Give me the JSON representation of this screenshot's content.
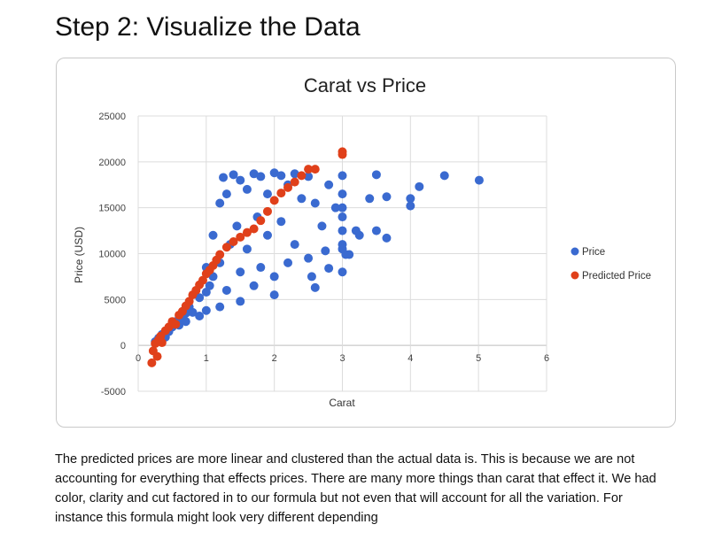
{
  "page": {
    "heading": "Step 2: Visualize the Data",
    "paragraph": "The predicted prices are more linear and clustered than the actual data is. This is because we are not accounting for everything that effects prices. There are many more things than carat that effect it. We had color, clarity and cut factored in to our formula but not even that will account for all the variation. For instance this formula might look very different depending"
  },
  "chart_data": {
    "type": "scatter",
    "title": "Carat vs Price",
    "xlabel": "Carat",
    "ylabel": "Price (USD)",
    "xlim": [
      0,
      6
    ],
    "ylim": [
      -5000,
      25000
    ],
    "x_ticks": [
      "0",
      "1",
      "2",
      "3",
      "4",
      "5",
      "6"
    ],
    "y_ticks": [
      "-5000",
      "0",
      "5000",
      "10000",
      "15000",
      "20000",
      "25000"
    ],
    "grid": true,
    "legend_position": "right",
    "colors": {
      "Price": "#3a6ad0",
      "Predicted Price": "#e0401a"
    },
    "series": [
      {
        "name": "Price",
        "points": [
          [
            0.25,
            400
          ],
          [
            0.3,
            800
          ],
          [
            0.35,
            1200
          ],
          [
            0.4,
            900
          ],
          [
            0.45,
            1500
          ],
          [
            0.5,
            2000
          ],
          [
            0.55,
            2600
          ],
          [
            0.6,
            2200
          ],
          [
            0.65,
            3000
          ],
          [
            0.7,
            3500
          ],
          [
            0.7,
            2600
          ],
          [
            0.75,
            4200
          ],
          [
            0.8,
            3600
          ],
          [
            0.9,
            5200
          ],
          [
            0.9,
            3200
          ],
          [
            1.0,
            5800
          ],
          [
            1.0,
            3800
          ],
          [
            1.0,
            8500
          ],
          [
            1.05,
            6500
          ],
          [
            1.1,
            12000
          ],
          [
            1.1,
            7500
          ],
          [
            1.2,
            15500
          ],
          [
            1.2,
            9000
          ],
          [
            1.2,
            4200
          ],
          [
            1.25,
            18300
          ],
          [
            1.3,
            16500
          ],
          [
            1.3,
            6000
          ],
          [
            1.35,
            11000
          ],
          [
            1.4,
            18600
          ],
          [
            1.45,
            13000
          ],
          [
            1.5,
            18000
          ],
          [
            1.5,
            8000
          ],
          [
            1.5,
            4800
          ],
          [
            1.6,
            17000
          ],
          [
            1.6,
            10500
          ],
          [
            1.7,
            18700
          ],
          [
            1.7,
            6500
          ],
          [
            1.75,
            14000
          ],
          [
            1.8,
            18400
          ],
          [
            1.8,
            8500
          ],
          [
            1.9,
            16500
          ],
          [
            1.9,
            12000
          ],
          [
            2.0,
            18800
          ],
          [
            2.0,
            7500
          ],
          [
            2.0,
            5500
          ],
          [
            2.1,
            18500
          ],
          [
            2.1,
            13500
          ],
          [
            2.2,
            17500
          ],
          [
            2.2,
            9000
          ],
          [
            2.3,
            18700
          ],
          [
            2.3,
            11000
          ],
          [
            2.4,
            16000
          ],
          [
            2.5,
            18400
          ],
          [
            2.5,
            9500
          ],
          [
            2.55,
            7500
          ],
          [
            2.6,
            15500
          ],
          [
            2.6,
            6300
          ],
          [
            2.7,
            13000
          ],
          [
            2.75,
            10300
          ],
          [
            2.8,
            17500
          ],
          [
            2.8,
            8400
          ],
          [
            2.9,
            15000
          ],
          [
            3.0,
            18500
          ],
          [
            3.0,
            16500
          ],
          [
            3.0,
            15000
          ],
          [
            3.0,
            14000
          ],
          [
            3.0,
            12500
          ],
          [
            3.0,
            11000
          ],
          [
            3.0,
            10500
          ],
          [
            3.0,
            8000
          ],
          [
            3.05,
            9900
          ],
          [
            3.1,
            9900
          ],
          [
            3.2,
            12500
          ],
          [
            3.25,
            12000
          ],
          [
            3.4,
            16000
          ],
          [
            3.5,
            18600
          ],
          [
            3.5,
            12500
          ],
          [
            3.65,
            16200
          ],
          [
            3.65,
            11700
          ],
          [
            4.0,
            16000
          ],
          [
            4.0,
            15200
          ],
          [
            4.13,
            17300
          ],
          [
            4.5,
            18500
          ],
          [
            5.01,
            18000
          ]
        ]
      },
      {
        "name": "Predicted Price",
        "points": [
          [
            0.2,
            -1900
          ],
          [
            0.22,
            -600
          ],
          [
            0.25,
            200
          ],
          [
            0.28,
            -1200
          ],
          [
            0.3,
            600
          ],
          [
            0.33,
            1000
          ],
          [
            0.35,
            300
          ],
          [
            0.4,
            1600
          ],
          [
            0.45,
            2000
          ],
          [
            0.5,
            2600
          ],
          [
            0.55,
            2300
          ],
          [
            0.6,
            3300
          ],
          [
            0.65,
            3700
          ],
          [
            0.7,
            4300
          ],
          [
            0.75,
            4800
          ],
          [
            0.8,
            5500
          ],
          [
            0.85,
            6000
          ],
          [
            0.9,
            6600
          ],
          [
            0.95,
            7100
          ],
          [
            1.0,
            7800
          ],
          [
            1.05,
            8200
          ],
          [
            1.1,
            8700
          ],
          [
            1.15,
            9300
          ],
          [
            1.2,
            9900
          ],
          [
            1.3,
            10700
          ],
          [
            1.4,
            11300
          ],
          [
            1.5,
            11800
          ],
          [
            1.6,
            12300
          ],
          [
            1.7,
            12700
          ],
          [
            1.8,
            13600
          ],
          [
            1.9,
            14600
          ],
          [
            2.0,
            15800
          ],
          [
            2.1,
            16600
          ],
          [
            2.2,
            17200
          ],
          [
            2.3,
            17800
          ],
          [
            2.4,
            18500
          ],
          [
            2.5,
            19200
          ],
          [
            2.6,
            19200
          ],
          [
            3.0,
            20800
          ],
          [
            3.0,
            21100
          ]
        ]
      }
    ]
  }
}
